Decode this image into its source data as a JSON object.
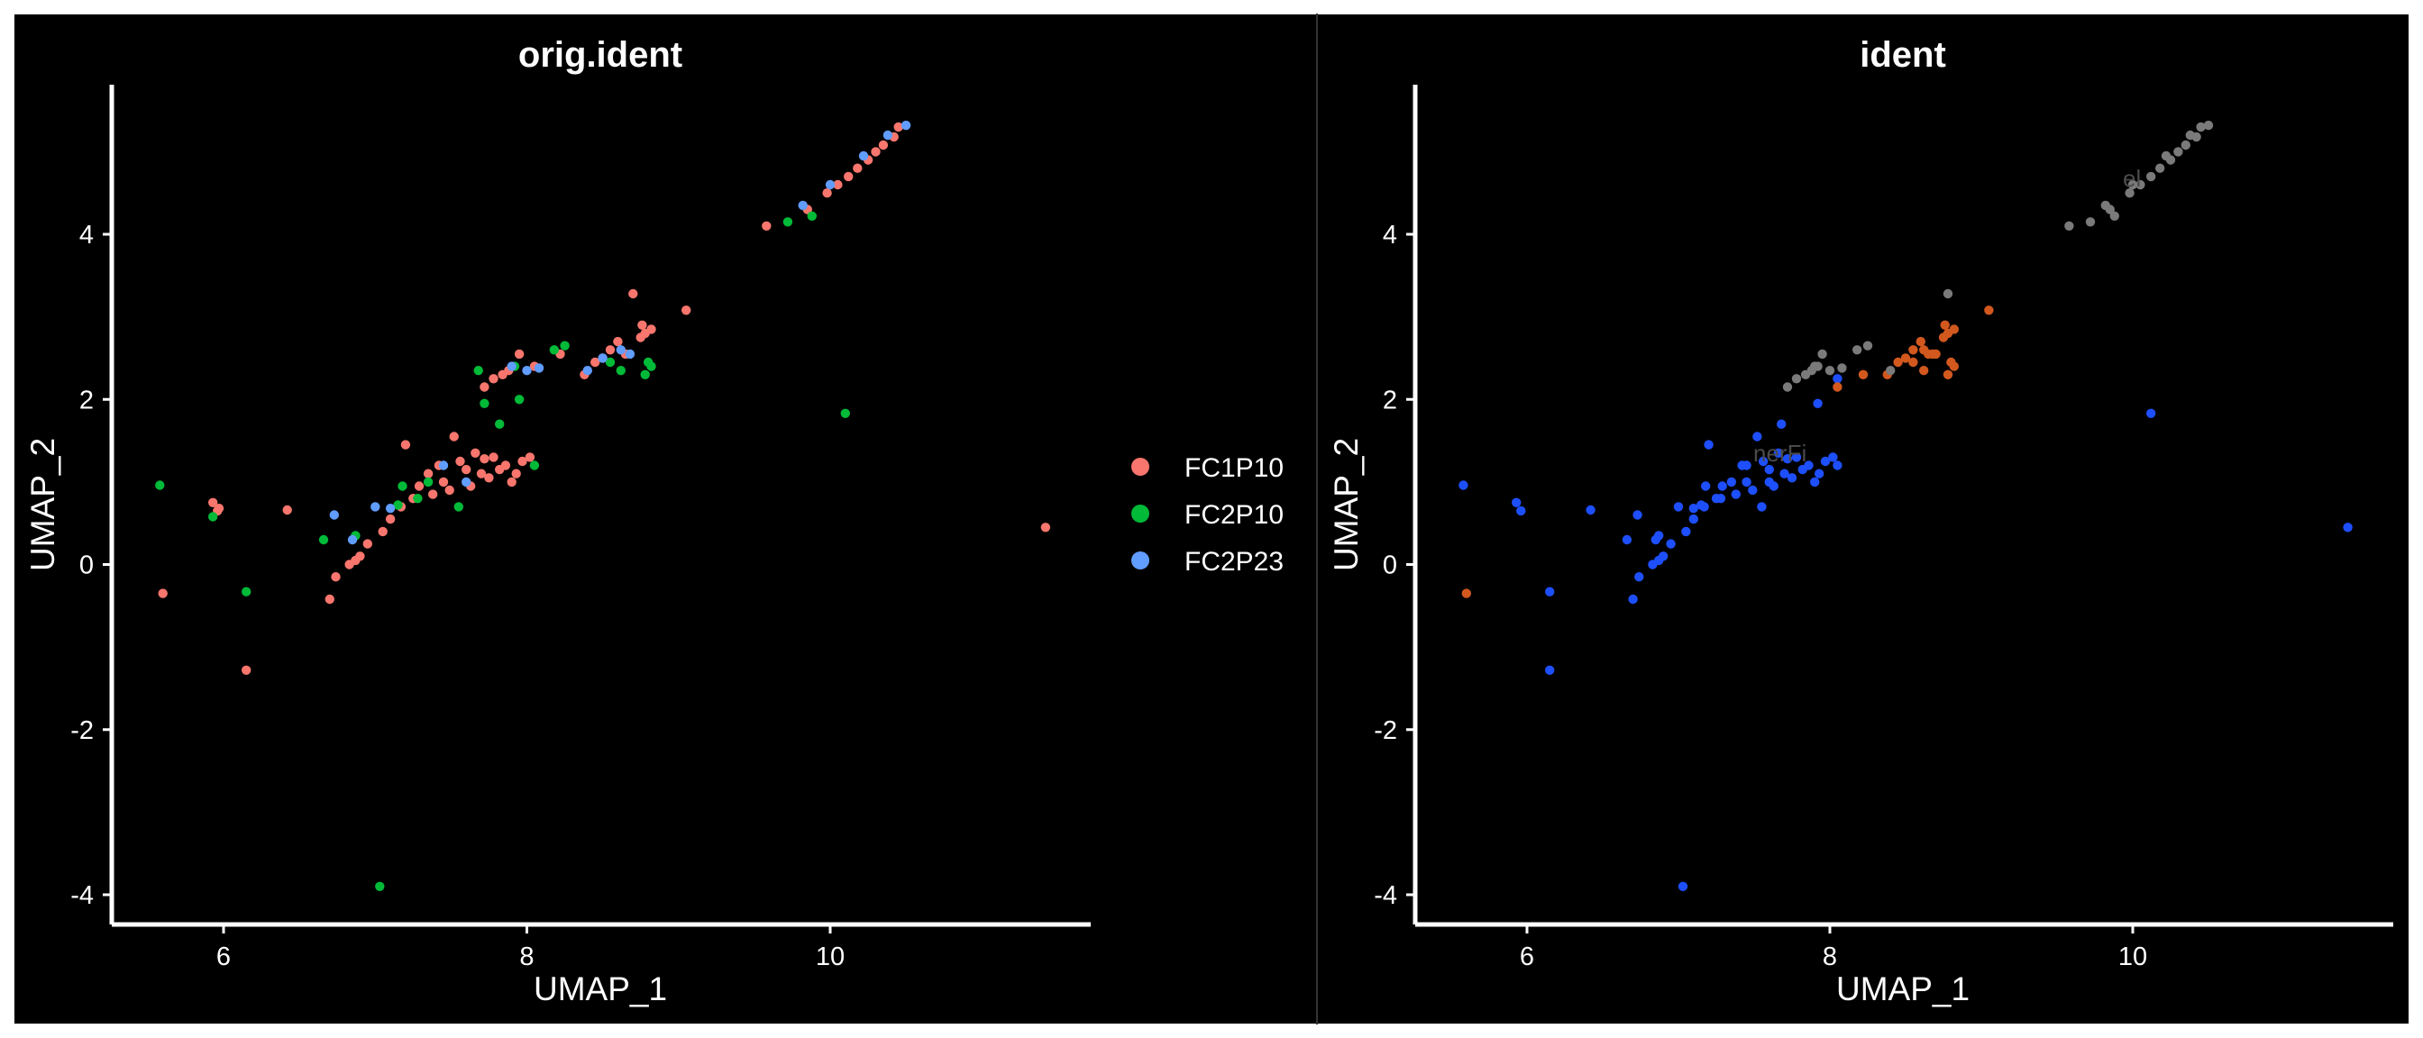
{
  "colors": {
    "background": "#000000",
    "outer_border": "#ffffff",
    "divider": "#333333",
    "axis": "#ffffff",
    "text": "#ffffff"
  },
  "chart_data": [
    {
      "type": "scatter",
      "title": "orig.ident",
      "xlabel": "UMAP_1",
      "ylabel": "UMAP_2",
      "xlim": [
        5.3,
        11.6
      ],
      "ylim": [
        -4.4,
        5.8
      ],
      "xticks": [
        6,
        8,
        10
      ],
      "yticks": [
        -4,
        -2,
        0,
        2,
        4
      ],
      "xtick_labels": [
        "6",
        "8",
        "10"
      ],
      "ytick_labels": [
        "-4",
        "-2",
        "0",
        "2",
        "4"
      ],
      "grid": false,
      "legend": "right",
      "series": [
        {
          "name": "FC1P10",
          "color": "#F8766D",
          "x": [
            5.6,
            5.93,
            5.96,
            5.97,
            6.15,
            6.42,
            6.7,
            6.74,
            6.83,
            6.87,
            6.9,
            6.95,
            7.05,
            7.1,
            7.17,
            7.2,
            7.25,
            7.29,
            7.35,
            7.38,
            7.42,
            7.45,
            7.49,
            7.52,
            7.56,
            7.6,
            7.63,
            7.66,
            7.7,
            7.72,
            7.75,
            7.78,
            7.82,
            7.86,
            7.9,
            7.93,
            7.97,
            8.02,
            7.72,
            7.78,
            7.84,
            7.88,
            7.95,
            8.05,
            8.22,
            8.38,
            8.45,
            8.5,
            8.55,
            8.6,
            8.65,
            8.7,
            8.75,
            8.78,
            8.82,
            8.76,
            9.05,
            9.58,
            9.85,
            9.98,
            10.05,
            10.12,
            10.18,
            10.25,
            10.3,
            10.35,
            10.42,
            10.45,
            11.42
          ],
          "y": [
            -0.35,
            0.75,
            0.65,
            0.68,
            -1.28,
            0.66,
            -0.42,
            -0.15,
            0.0,
            0.05,
            0.1,
            0.25,
            0.4,
            0.55,
            0.7,
            1.45,
            0.8,
            0.95,
            1.1,
            0.85,
            1.2,
            1.0,
            0.9,
            1.55,
            1.25,
            1.15,
            0.95,
            1.35,
            1.1,
            1.28,
            1.05,
            1.3,
            1.15,
            1.2,
            1.0,
            1.1,
            1.25,
            1.3,
            2.15,
            2.25,
            2.3,
            2.35,
            2.55,
            2.4,
            2.55,
            2.3,
            2.45,
            2.5,
            2.6,
            2.7,
            2.55,
            3.28,
            2.75,
            2.8,
            2.85,
            2.9,
            3.08,
            4.1,
            4.3,
            4.5,
            4.6,
            4.7,
            4.8,
            4.9,
            5.0,
            5.08,
            5.18,
            5.3,
            0.45
          ]
        },
        {
          "name": "FC2P10",
          "color": "#00BA38",
          "x": [
            5.58,
            5.93,
            6.15,
            6.66,
            6.87,
            7.03,
            7.15,
            7.18,
            7.28,
            7.35,
            7.55,
            7.72,
            7.82,
            7.95,
            8.05,
            7.92,
            7.68,
            8.18,
            8.25,
            8.55,
            8.62,
            8.82,
            8.8,
            8.78,
            9.72,
            9.88,
            10.1
          ],
          "y": [
            0.96,
            0.58,
            -0.33,
            0.3,
            0.35,
            -3.9,
            0.72,
            0.95,
            0.8,
            1.0,
            0.7,
            1.95,
            1.7,
            2.0,
            1.2,
            2.4,
            2.35,
            2.6,
            2.65,
            2.45,
            2.35,
            2.4,
            2.45,
            2.3,
            4.15,
            4.22,
            1.83
          ]
        },
        {
          "name": "FC2P23",
          "color": "#619CFF",
          "x": [
            6.73,
            6.85,
            7.0,
            7.1,
            7.45,
            7.6,
            7.9,
            8.0,
            8.08,
            8.4,
            8.5,
            8.62,
            8.68,
            9.82,
            10.0,
            10.22,
            10.38,
            10.5
          ],
          "y": [
            0.6,
            0.3,
            0.7,
            0.68,
            1.2,
            1.0,
            2.4,
            2.35,
            2.38,
            2.35,
            2.5,
            2.6,
            2.55,
            4.35,
            4.6,
            4.95,
            5.2,
            5.32
          ]
        }
      ]
    },
    {
      "type": "scatter",
      "title": "ident",
      "xlabel": "UMAP_1",
      "ylabel": "UMAP_2",
      "xlim": [
        5.3,
        11.6
      ],
      "ylim": [
        -4.4,
        5.8
      ],
      "xticks": [
        6,
        8,
        10
      ],
      "yticks": [
        -4,
        -2,
        0,
        2,
        4
      ],
      "xtick_labels": [
        "6",
        "8",
        "10"
      ],
      "ytick_labels": [
        "-4",
        "-2",
        "0",
        "2",
        "4"
      ],
      "grid": false,
      "legend": "none",
      "annotations": [
        "nerFi",
        "el"
      ],
      "series": [
        {
          "color": "#1E4FFF",
          "x": [
            5.58,
            5.93,
            5.96,
            6.15,
            6.15,
            6.42,
            6.66,
            6.7,
            6.73,
            6.74,
            6.83,
            6.85,
            6.87,
            6.87,
            6.9,
            6.95,
            7.0,
            7.03,
            7.05,
            7.1,
            7.1,
            7.15,
            7.17,
            7.18,
            7.2,
            7.25,
            7.28,
            7.29,
            7.35,
            7.38,
            7.42,
            7.45,
            7.45,
            7.49,
            7.52,
            7.55,
            7.56,
            7.6,
            7.6,
            7.63,
            7.66,
            7.68,
            7.7,
            7.72,
            7.75,
            7.78,
            7.82,
            7.86,
            7.9,
            7.92,
            7.93,
            7.97,
            8.02,
            8.05,
            8.05,
            10.12,
            11.42
          ],
          "y": [
            0.96,
            0.75,
            0.65,
            -0.33,
            -1.28,
            0.66,
            0.3,
            -0.42,
            0.6,
            -0.15,
            0.0,
            0.3,
            0.05,
            0.35,
            0.1,
            0.25,
            0.7,
            -3.9,
            0.4,
            0.55,
            0.68,
            0.72,
            0.7,
            0.95,
            1.45,
            0.8,
            0.8,
            0.95,
            1.0,
            0.85,
            1.2,
            1.0,
            1.2,
            0.9,
            1.55,
            0.7,
            1.25,
            1.15,
            1.0,
            0.95,
            1.35,
            1.7,
            1.1,
            1.28,
            1.05,
            1.3,
            1.15,
            1.2,
            1.0,
            1.95,
            1.1,
            1.25,
            1.3,
            1.2,
            2.25,
            1.83,
            0.45
          ]
        },
        {
          "color": "#D2581E",
          "x": [
            5.6,
            8.05,
            8.22,
            8.38,
            8.45,
            8.5,
            8.55,
            8.55,
            8.6,
            8.62,
            8.62,
            8.65,
            8.68,
            8.7,
            8.75,
            8.78,
            8.78,
            8.8,
            8.82,
            8.82,
            8.76,
            9.05
          ],
          "y": [
            -0.35,
            2.15,
            2.3,
            2.3,
            2.45,
            2.5,
            2.6,
            2.45,
            2.7,
            2.35,
            2.6,
            2.55,
            2.55,
            2.55,
            2.75,
            2.8,
            2.3,
            2.45,
            2.85,
            2.4,
            2.9,
            3.08
          ]
        },
        {
          "color": "#7A7A7A",
          "x": [
            7.72,
            7.78,
            7.84,
            7.88,
            7.9,
            7.92,
            7.95,
            8.0,
            8.08,
            8.18,
            8.25,
            8.4,
            8.78,
            9.58,
            9.72,
            9.82,
            9.85,
            9.88,
            9.98,
            10.0,
            10.05,
            10.12,
            10.18,
            10.22,
            10.25,
            10.3,
            10.35,
            10.38,
            10.42,
            10.45,
            10.5
          ],
          "y": [
            2.15,
            2.25,
            2.3,
            2.35,
            2.4,
            2.4,
            2.55,
            2.35,
            2.38,
            2.6,
            2.65,
            2.35,
            3.28,
            4.1,
            4.15,
            4.35,
            4.3,
            4.22,
            4.5,
            4.6,
            4.6,
            4.7,
            4.8,
            4.95,
            4.9,
            5.0,
            5.08,
            5.2,
            5.18,
            5.3,
            5.32
          ]
        }
      ]
    }
  ]
}
